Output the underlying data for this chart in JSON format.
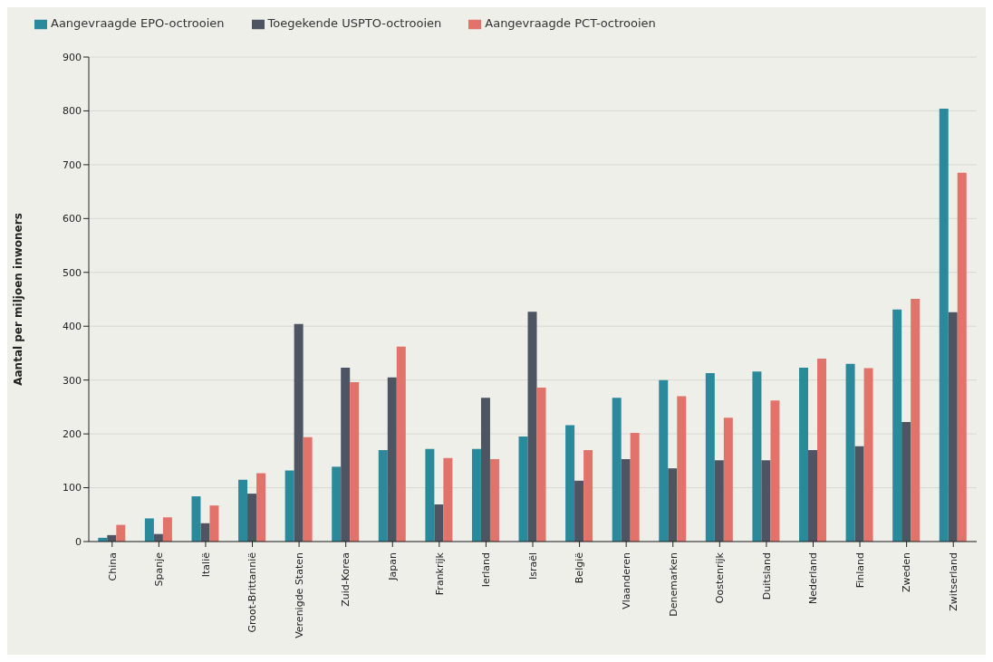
{
  "chart_data": {
    "type": "bar",
    "ylabel": "Aantal per miljoen inwoners",
    "categories": [
      "China",
      "Spanje",
      "Italië",
      "Groot-Brittannië",
      "Verenigde Staten",
      "Zuid-Korea",
      "Japan",
      "Frankrijk",
      "Ierland",
      "Israël",
      "België",
      "Vlaanderen",
      "Denemarken",
      "Oostenrijk",
      "Duitsland",
      "Nederland",
      "Finland",
      "Zweden",
      "Zwitserland"
    ],
    "series": [
      {
        "name": "Aangevraagde EPO-octrooien",
        "color": "#2a8a9c",
        "values": [
          7,
          43,
          84,
          115,
          132,
          139,
          170,
          172,
          172,
          195,
          216,
          267,
          300,
          313,
          316,
          323,
          330,
          431,
          804
        ]
      },
      {
        "name": "Toegekende USPTO-octrooien",
        "color": "#4d5562",
        "values": [
          12,
          14,
          34,
          89,
          404,
          323,
          305,
          69,
          267,
          427,
          113,
          153,
          136,
          151,
          151,
          170,
          177,
          222,
          426
        ]
      },
      {
        "name": "Aangevraagde PCT-octrooien",
        "color": "#e2736a",
        "values": [
          31,
          45,
          67,
          127,
          194,
          296,
          362,
          155,
          153,
          286,
          170,
          202,
          270,
          230,
          262,
          340,
          322,
          451,
          685
        ]
      }
    ],
    "ylim": [
      0,
      900
    ],
    "yticks": [
      0,
      100,
      200,
      300,
      400,
      500,
      600,
      700,
      800,
      900
    ],
    "grid": "y",
    "legend": "top left"
  }
}
